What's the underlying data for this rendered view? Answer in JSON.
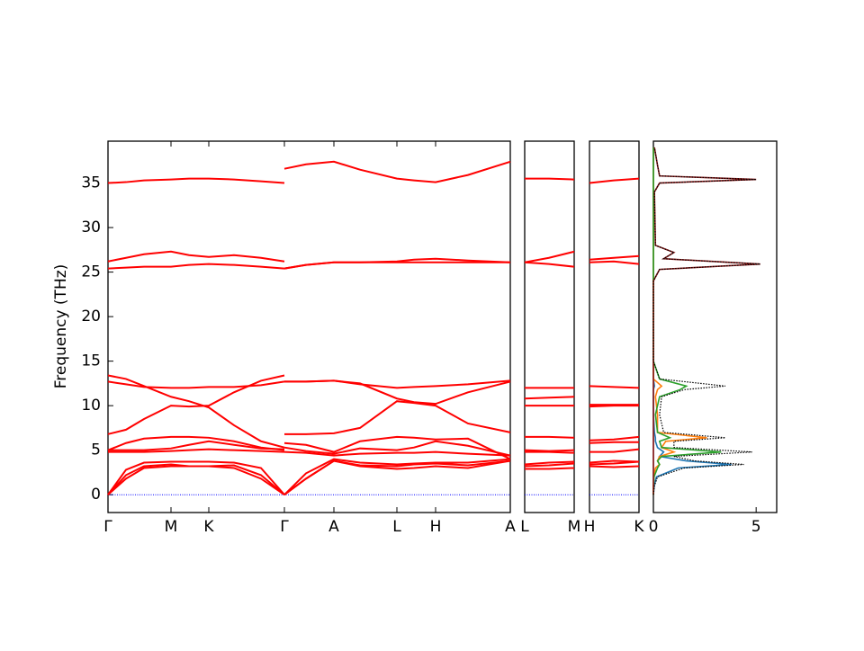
{
  "chart_data": [
    {
      "type": "bands",
      "ylabel": "Frequency (THz)",
      "color": "#ff0000",
      "ylim": [
        -2,
        39.7
      ],
      "yticks": [
        0,
        5,
        10,
        15,
        20,
        25,
        30,
        35
      ],
      "xlim": [
        0,
        447
      ],
      "xticks": [
        {
          "value": 0,
          "label": "Γ"
        },
        {
          "value": 70,
          "label": "M"
        },
        {
          "value": 112,
          "label": "K"
        },
        {
          "value": 196,
          "label": "Γ"
        },
        {
          "value": 251,
          "label": "A"
        },
        {
          "value": 321,
          "label": "L"
        },
        {
          "value": 364,
          "label": "H"
        },
        {
          "value": 447,
          "label": "A"
        }
      ],
      "segments": [
        {
          "x": [
            0,
            20,
            40,
            70,
            90,
            112,
            140,
            170,
            196
          ],
          "bands": [
            [
              0,
              1.8,
              3.0,
              3.2,
              3.2,
              3.2,
              3.0,
              1.8,
              0
            ],
            [
              0,
              2.2,
              3.2,
              3.4,
              3.2,
              3.2,
              3.3,
              2.2,
              0
            ],
            [
              0,
              2.8,
              3.6,
              3.7,
              3.7,
              3.7,
              3.6,
              3.0,
              0
            ],
            [
              4.8,
              4.8,
              4.8,
              4.9,
              5.0,
              5.1,
              5.0,
              4.9,
              4.8
            ],
            [
              5.0,
              5.8,
              6.3,
              6.5,
              6.5,
              6.4,
              6.0,
              5.3,
              5.0
            ],
            [
              5.0,
              5.0,
              5.0,
              5.2,
              5.6,
              6.0,
              5.6,
              5.2,
              5.1
            ],
            [
              6.8,
              7.3,
              8.5,
              10.0,
              9.9,
              10.0,
              11.5,
              12.8,
              13.4
            ],
            [
              13.4,
              13.0,
              12.2,
              11.0,
              10.5,
              9.8,
              7.8,
              6.0,
              5.3
            ],
            [
              12.7,
              12.4,
              12.1,
              12.0,
              12.0,
              12.1,
              12.1,
              12.3,
              12.7
            ],
            [
              25.4,
              25.5,
              25.6,
              25.6,
              25.8,
              25.9,
              25.8,
              25.6,
              25.4
            ],
            [
              26.2,
              26.6,
              27.0,
              27.3,
              26.9,
              26.7,
              26.9,
              26.6,
              26.2
            ],
            [
              35.0,
              35.1,
              35.3,
              35.4,
              35.5,
              35.5,
              35.4,
              35.2,
              35.0
            ]
          ]
        },
        {
          "x": [
            196,
            220,
            251,
            280,
            321,
            340,
            364,
            400,
            447
          ],
          "bands": [
            [
              0,
              1.8,
              3.8,
              3.2,
              2.9,
              3.0,
              3.2,
              3.0,
              3.8
            ],
            [
              0,
              1.8,
              3.8,
              3.3,
              3.2,
              3.4,
              3.5,
              3.3,
              3.8
            ],
            [
              0,
              2.4,
              4.0,
              3.6,
              3.4,
              3.5,
              3.6,
              3.6,
              4.0
            ],
            [
              4.8,
              4.7,
              4.4,
              4.6,
              4.7,
              4.7,
              4.8,
              4.6,
              4.4
            ],
            [
              5.3,
              4.9,
              4.6,
              5.2,
              5.0,
              5.3,
              6.0,
              5.5,
              4.4
            ],
            [
              5.8,
              5.6,
              4.8,
              6.0,
              6.5,
              6.4,
              6.2,
              6.3,
              4.0
            ],
            [
              6.8,
              6.8,
              6.9,
              7.5,
              10.5,
              10.3,
              10.0,
              8.0,
              7.0
            ],
            [
              12.7,
              12.7,
              12.8,
              12.5,
              10.8,
              10.4,
              10.2,
              11.5,
              12.7
            ],
            [
              12.7,
              12.7,
              12.8,
              12.4,
              12.0,
              12.1,
              12.2,
              12.4,
              12.8
            ],
            [
              25.4,
              25.8,
              26.1,
              26.1,
              26.1,
              26.1,
              26.1,
              26.1,
              26.1
            ],
            [
              25.4,
              25.8,
              26.1,
              26.1,
              26.2,
              26.4,
              26.5,
              26.3,
              26.1
            ],
            [
              36.6,
              37.1,
              37.4,
              36.5,
              35.5,
              35.3,
              35.1,
              35.9,
              37.4
            ]
          ]
        }
      ]
    },
    {
      "type": "bands",
      "color": "#ff0000",
      "ylim": [
        -2,
        39.7
      ],
      "xlim": [
        0,
        55
      ],
      "xticks": [
        {
          "value": 0,
          "label": "L"
        },
        {
          "value": 55,
          "label": "M"
        }
      ],
      "segments": [
        {
          "x": [
            0,
            27,
            55
          ],
          "bands": [
            [
              2.9,
              2.9,
              3.0
            ],
            [
              3.2,
              3.3,
              3.5
            ],
            [
              3.4,
              3.6,
              3.7
            ],
            [
              4.8,
              4.8,
              4.7
            ],
            [
              5.0,
              4.9,
              5.0
            ],
            [
              6.5,
              6.5,
              6.4
            ],
            [
              10.0,
              10.0,
              10.0
            ],
            [
              10.8,
              10.9,
              11.0
            ],
            [
              12.0,
              12.0,
              12.0
            ],
            [
              26.1,
              25.9,
              25.6
            ],
            [
              26.1,
              26.6,
              27.3
            ],
            [
              35.5,
              35.5,
              35.4
            ]
          ]
        }
      ]
    },
    {
      "type": "bands",
      "color": "#ff0000",
      "ylim": [
        -2,
        39.7
      ],
      "xlim": [
        0,
        55
      ],
      "xticks": [
        {
          "value": 0,
          "label": "H"
        },
        {
          "value": 55,
          "label": "K"
        }
      ],
      "segments": [
        {
          "x": [
            0,
            27,
            55
          ],
          "bands": [
            [
              3.2,
              3.1,
              3.2
            ],
            [
              3.4,
              3.5,
              3.7
            ],
            [
              3.6,
              3.8,
              3.7
            ],
            [
              4.8,
              4.8,
              5.1
            ],
            [
              5.8,
              5.9,
              5.9
            ],
            [
              6.1,
              6.2,
              6.5
            ],
            [
              9.9,
              10.0,
              10.0
            ],
            [
              10.1,
              10.1,
              10.1
            ],
            [
              12.2,
              12.1,
              12.0
            ],
            [
              26.1,
              26.2,
              25.9
            ],
            [
              26.4,
              26.6,
              26.8
            ],
            [
              35.0,
              35.3,
              35.5
            ]
          ]
        }
      ]
    },
    {
      "type": "dos",
      "ylim": [
        -2,
        39.7
      ],
      "xlim": [
        0,
        6
      ],
      "xticks": [
        0,
        5
      ],
      "frequencies": [
        0,
        1,
        2,
        3,
        3.4,
        3.8,
        4.3,
        4.8,
        5.3,
        6.0,
        6.4,
        7.0,
        9,
        11,
        11.8,
        12.2,
        13,
        15,
        24,
        25.3,
        25.9,
        26.5,
        27.2,
        28,
        34,
        35.0,
        35.4,
        35.8,
        37,
        39
      ],
      "series": [
        {
          "color": "#1f77b4",
          "values": [
            0,
            0.04,
            0.15,
            1.2,
            3.8,
            1.6,
            0.3,
            0.5,
            0.2,
            0.1,
            0.1,
            0.05,
            0,
            0,
            0,
            0.05,
            0,
            0,
            0,
            0,
            0,
            0,
            0,
            0,
            0,
            0,
            0,
            0,
            0,
            0
          ]
        },
        {
          "color": "#ff7f0e",
          "values": [
            0,
            0,
            0.02,
            0.1,
            0.3,
            0.2,
            0.3,
            1.0,
            0.4,
            0.6,
            2.6,
            0.2,
            0.2,
            0.1,
            0.2,
            0.4,
            0,
            0,
            0,
            0,
            0,
            0,
            0,
            0,
            0,
            0,
            0,
            0,
            0,
            0
          ]
        },
        {
          "color": "#2ca02c",
          "values": [
            0,
            0.01,
            0.03,
            0.2,
            0.3,
            0.2,
            0.4,
            3.3,
            0.4,
            0.3,
            0.8,
            0.2,
            0.1,
            0.3,
            1.3,
            1.6,
            0.3,
            0,
            0,
            0,
            0,
            0,
            0,
            0,
            0,
            0,
            0,
            0,
            0,
            0
          ]
        },
        {
          "color": "#8b1a1a",
          "values": [
            0,
            0,
            0,
            0,
            0,
            0,
            0,
            0,
            0,
            0,
            0,
            0,
            0,
            0,
            0,
            0,
            0,
            0,
            0,
            0.3,
            5.2,
            0.5,
            1.0,
            0.1,
            0.05,
            0.3,
            5.0,
            0.3,
            0.2,
            0.05
          ]
        },
        {
          "color": "#000000",
          "linestyle": "dotted",
          "values": [
            0,
            0.05,
            0.2,
            1.5,
            4.4,
            2.0,
            1.0,
            4.8,
            1.0,
            1.0,
            3.5,
            0.5,
            0.3,
            0.4,
            1.5,
            3.5,
            0.3,
            0,
            0,
            0.3,
            5.2,
            0.5,
            1.0,
            0.1,
            0.05,
            0.3,
            5.0,
            0.3,
            0.2,
            0.05
          ]
        }
      ]
    }
  ]
}
